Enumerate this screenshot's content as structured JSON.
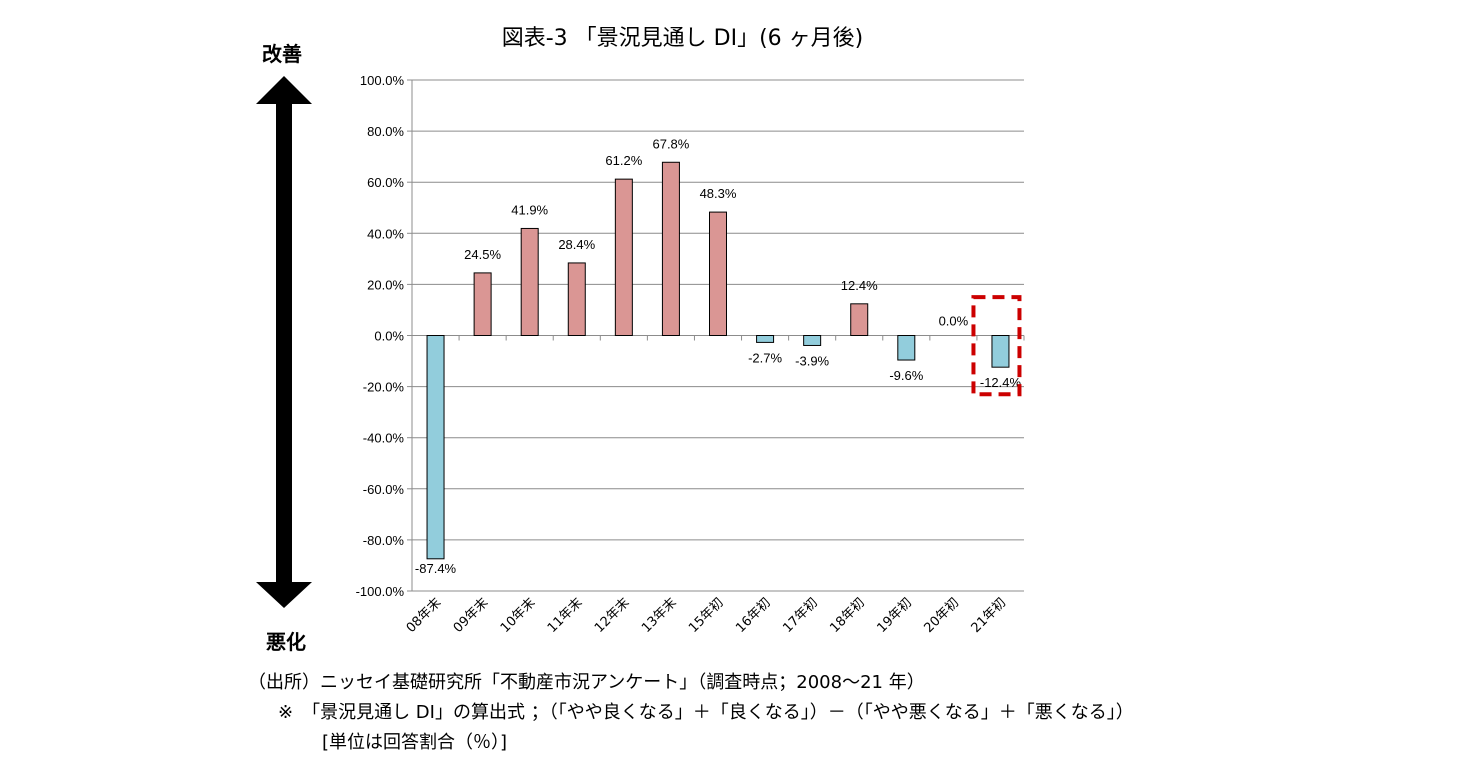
{
  "chart_data": {
    "type": "bar",
    "title": "図表-3 「景況見通し DI」(6 ヶ月後)",
    "categories": [
      "08年末",
      "09年末",
      "10年末",
      "11年末",
      "12年末",
      "13年末",
      "15年初",
      "16年初",
      "17年初",
      "18年初",
      "19年初",
      "20年初",
      "21年初"
    ],
    "values": [
      -87.4,
      24.5,
      41.9,
      28.4,
      61.2,
      67.8,
      48.3,
      -2.7,
      -3.9,
      12.4,
      -9.6,
      0.0,
      -12.4
    ],
    "data_labels": [
      "-87.4%",
      "24.5%",
      "41.9%",
      "28.4%",
      "61.2%",
      "67.8%",
      "48.3%",
      "-2.7%",
      "-3.9%",
      "12.4%",
      "-9.6%",
      "0.0%",
      "-12.4%"
    ],
    "ylim": [
      -100,
      100
    ],
    "yticks": [
      "100.0%",
      "80.0%",
      "60.0%",
      "40.0%",
      "20.0%",
      "0.0%",
      "-20.0%",
      "-40.0%",
      "-60.0%",
      "-80.0%",
      "-100.0%"
    ],
    "grid": true,
    "colors": {
      "positive": "#da9694",
      "negative": "#92cddc",
      "highlight": "#cc0000"
    },
    "highlighted_category": "21年初"
  },
  "arrow": {
    "top_label": "改善",
    "bottom_label": "悪化"
  },
  "notes": [
    "（出所）ニッセイ基礎研究所「不動産市況アンケート」（調査時点；2008～21 年）",
    "　※　「景況見通し DI」の算出式 ；（「やや良くなる」＋「良くなる」）－（「やや悪くなる」＋「悪くなる」）",
    "　　　[単位は回答割合（％）]"
  ]
}
